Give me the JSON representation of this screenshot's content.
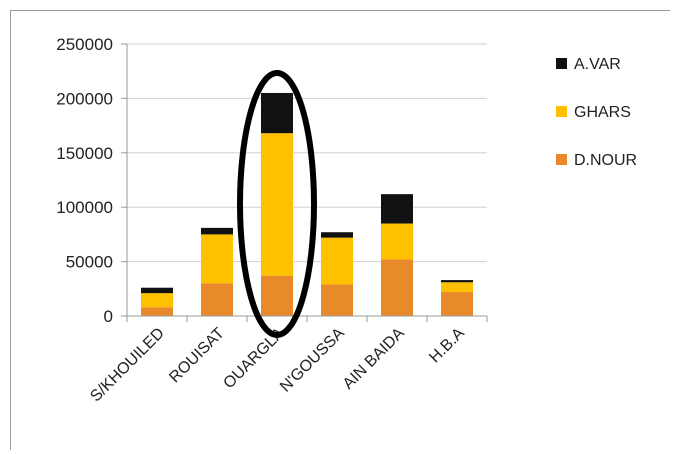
{
  "chart_data": {
    "type": "bar",
    "stacked": true,
    "categories": [
      "S/KHOUILED",
      "ROUISAT",
      "OUARGLA",
      "N'GOUSSA",
      "AIN BAIDA",
      "H.B.A"
    ],
    "series": [
      {
        "name": "D.NOUR",
        "color": "#e8892a",
        "values": [
          8000,
          30000,
          37000,
          29000,
          52000,
          22000
        ]
      },
      {
        "name": "GHARS",
        "color": "#ffc000",
        "values": [
          13000,
          45000,
          131000,
          43000,
          33000,
          9000
        ]
      },
      {
        "name": "A.VAR",
        "color": "#111111",
        "values": [
          5000,
          6000,
          37000,
          5000,
          27000,
          2000
        ]
      }
    ],
    "ylim": [
      0,
      250000
    ],
    "yticks": [
      0,
      50000,
      100000,
      150000,
      200000,
      250000
    ],
    "grid": true,
    "legend": "right",
    "annotation": {
      "type": "ellipse-highlight",
      "category": "OUARGLA"
    }
  }
}
